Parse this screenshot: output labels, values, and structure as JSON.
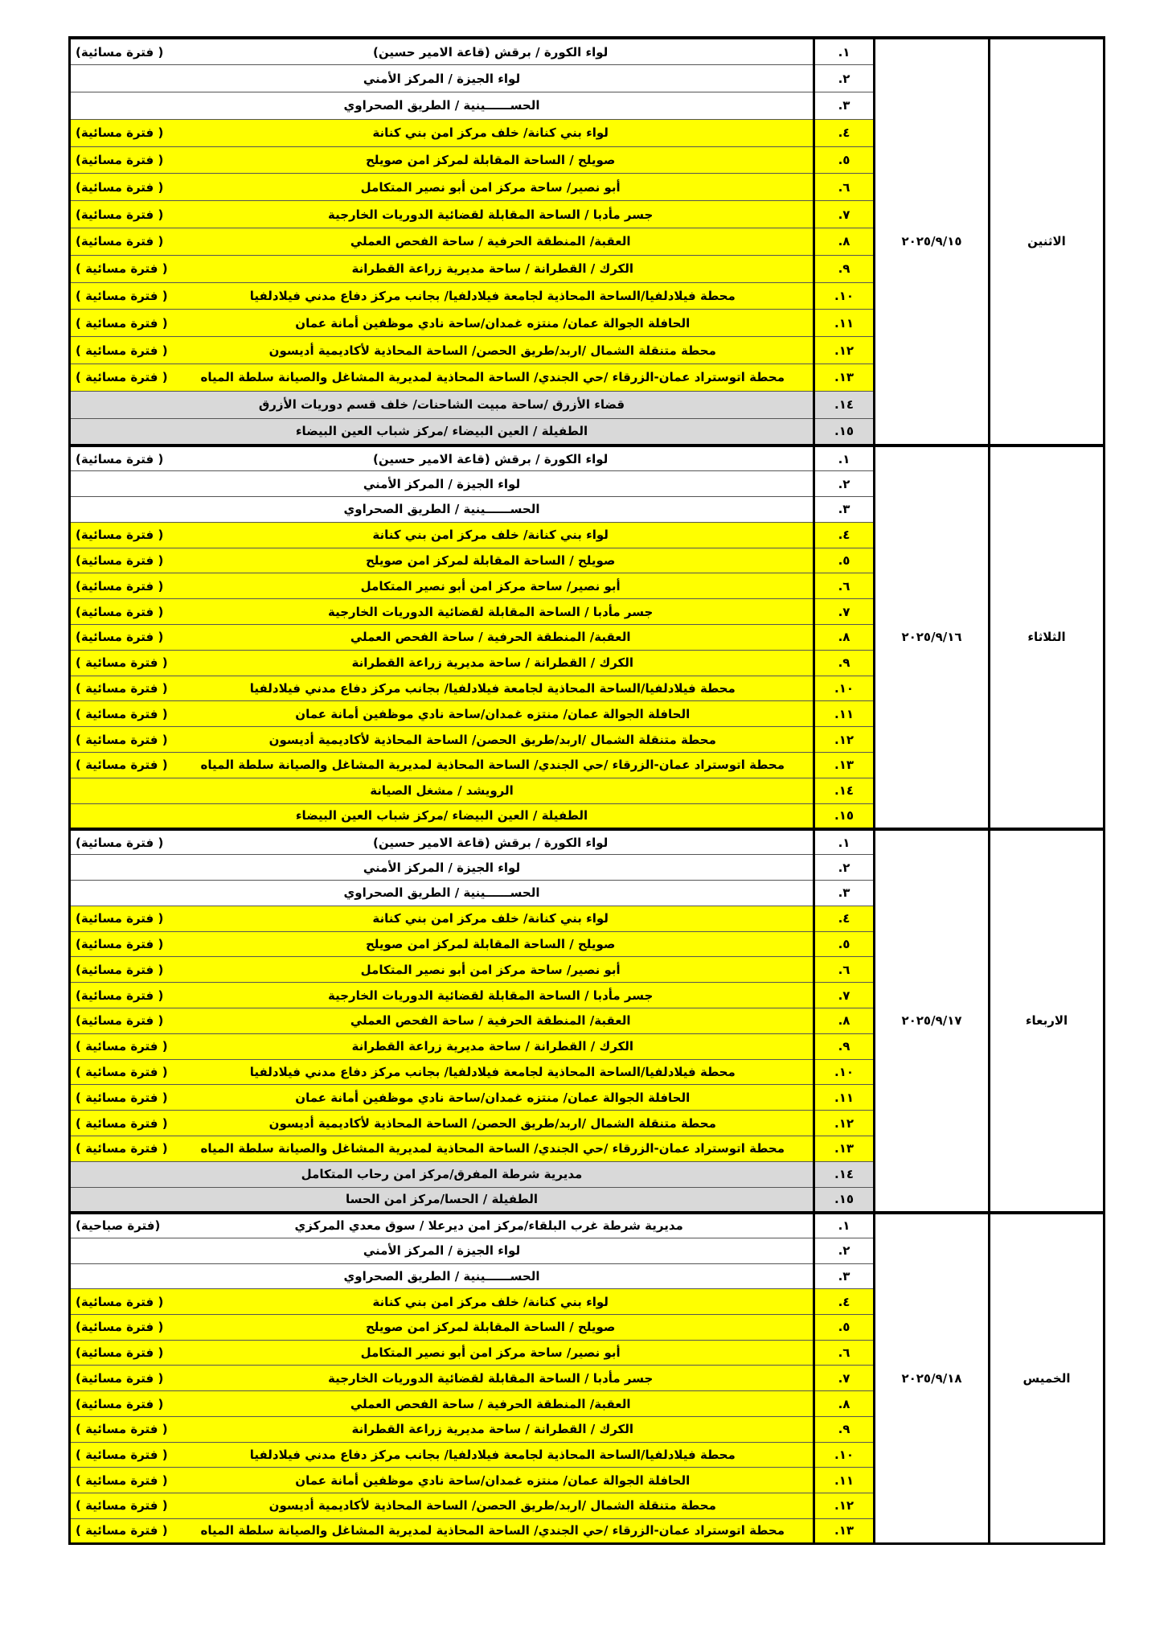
{
  "colors": {
    "white": "#ffffff",
    "yellow": "#ffff00",
    "grey": "#d9d9d9"
  },
  "sections": [
    {
      "day": "الاثنين",
      "date": "٢٠٢٥/٩/١٥",
      "rows": [
        {
          "num": "١.",
          "text": "لواء الكورة / برقش (قاعة الامير حسين)",
          "note": "( فترة مسائية)",
          "bg": "#ffffff"
        },
        {
          "num": "٢.",
          "text": "لواء الجيزة / المركز الأمني",
          "note": "",
          "bg": "#ffffff"
        },
        {
          "num": "٣.",
          "text": "الحســــــينية / الطريق الصحراوي",
          "note": "",
          "bg": "#ffffff"
        },
        {
          "num": "٤.",
          "text": "لواء بني كنانة/ خلف مركز امن بني كنانة",
          "note": "( فترة مسائية)",
          "bg": "#ffff00"
        },
        {
          "num": "٥.",
          "text": "صويلح / الساحة المقابلة لمركز امن صويلح",
          "note": "( فترة مسائية)",
          "bg": "#ffff00"
        },
        {
          "num": "٦.",
          "text": "أبو نصير/ ساحة مركز امن أبو نصير المتكامل",
          "note": "( فترة مسائية)",
          "bg": "#ffff00"
        },
        {
          "num": "٧.",
          "text": "جسر مأدبا / الساحة المقابلة لقضائية الدوريات الخارجية",
          "note": "( فترة مسائية)",
          "bg": "#ffff00"
        },
        {
          "num": "٨.",
          "text": "العقبة/ المنطقة الحرفية / ساحة الفحص العملي",
          "note": "( فترة مسائية)",
          "bg": "#ffff00"
        },
        {
          "num": "٩.",
          "text": "الكرك / القطرانة / ساحة مديرية زراعة القطرانة",
          "note": "( فترة مسائية )",
          "bg": "#ffff00"
        },
        {
          "num": "١٠.",
          "text": "محطة فيلادلفيا/الساحة المحاذية لجامعة فيلادلفيا/ بجانب مركز دفاع مدني فيلادلفيا",
          "note": "( فترة مسائية )",
          "bg": "#ffff00"
        },
        {
          "num": "١١.",
          "text": "الحافلة الجوالة عمان/ منتزه غمدان/ساحة نادي موظفين أمانة عمان",
          "note": "( فترة مسائية )",
          "bg": "#ffff00"
        },
        {
          "num": "١٢.",
          "text": "محطة متنقلة الشمال /اربد/طريق الحصن/ الساحة المحاذية لأكاديمية أديسون",
          "note": "( فترة مسائية )",
          "bg": "#ffff00"
        },
        {
          "num": "١٣.",
          "text": "محطة اتوستراد عمان-الزرقاء /حي الجندي/ الساحة المحاذية لمديرية المشاغل والصيانة سلطة المياه",
          "note": "( فترة مسائية )",
          "bg": "#ffff00"
        },
        {
          "num": "١٤.",
          "text": "قضاء الأزرق /ساحة مبيت الشاحنات/ خلف قسم دوريات الأزرق",
          "note": "",
          "bg": "#d9d9d9"
        },
        {
          "num": "١٥.",
          "text": "الطفيلة / العين البيضاء /مركز شباب العين البيضاء",
          "note": "",
          "bg": "#d9d9d9"
        }
      ]
    },
    {
      "day": "الثلاثاء",
      "date": "٢٠٢٥/٩/١٦",
      "rows": [
        {
          "num": "١.",
          "text": "لواء الكورة / برقش (قاعة الامير حسين)",
          "note": "( فترة مسائية)",
          "bg": "#ffffff"
        },
        {
          "num": "٢.",
          "text": "لواء الجيزة / المركز الأمني",
          "note": "",
          "bg": "#ffffff"
        },
        {
          "num": "٣.",
          "text": "الحســــــينية / الطريق الصحراوي",
          "note": "",
          "bg": "#ffffff"
        },
        {
          "num": "٤.",
          "text": "لواء بني كنانة/ خلف مركز امن بني كنانة",
          "note": "( فترة مسائية)",
          "bg": "#ffff00"
        },
        {
          "num": "٥.",
          "text": "صويلح / الساحة المقابلة لمركز امن صويلح",
          "note": "( فترة مسائية)",
          "bg": "#ffff00"
        },
        {
          "num": "٦.",
          "text": "أبو نصير/ ساحة مركز امن أبو نصير المتكامل",
          "note": "( فترة مسائية)",
          "bg": "#ffff00"
        },
        {
          "num": "٧.",
          "text": "جسر مأدبا / الساحة المقابلة لقضائية الدوريات الخارجية",
          "note": "( فترة مسائية)",
          "bg": "#ffff00"
        },
        {
          "num": "٨.",
          "text": "العقبة/ المنطقة الحرفية / ساحة الفحص العملي",
          "note": "( فترة مسائية)",
          "bg": "#ffff00"
        },
        {
          "num": "٩.",
          "text": "الكرك / القطرانة / ساحة مديرية زراعة القطرانة",
          "note": "( فترة مسائية )",
          "bg": "#ffff00"
        },
        {
          "num": "١٠.",
          "text": "محطة فيلادلفيا/الساحة المحاذية لجامعة فيلادلفيا/ بجانب مركز دفاع مدني فيلادلفيا",
          "note": "( فترة مسائية )",
          "bg": "#ffff00"
        },
        {
          "num": "١١.",
          "text": "الحافلة الجوالة عمان/ منتزه غمدان/ساحة نادي موظفين أمانة عمان",
          "note": "( فترة مسائية )",
          "bg": "#ffff00"
        },
        {
          "num": "١٢.",
          "text": "محطة متنقلة الشمال /اربد/طريق الحصن/ الساحة المحاذية لأكاديمية أديسون",
          "note": "( فترة مسائية )",
          "bg": "#ffff00"
        },
        {
          "num": "١٣.",
          "text": "محطة اتوستراد عمان-الزرقاء /حي الجندي/ الساحة المحاذية لمديرية المشاغل والصيانة سلطة المياه",
          "note": "( فترة مسائية )",
          "bg": "#ffff00"
        },
        {
          "num": "١٤.",
          "text": "الرويشد / مشغل الصيانة",
          "note": "",
          "bg": "#ffff00"
        },
        {
          "num": "١٥.",
          "text": "الطفيلة / العين البيضاء /مركز شباب العين البيضاء",
          "note": "",
          "bg": "#ffff00"
        }
      ]
    },
    {
      "day": "الاربعاء",
      "date": "٢٠٢٥/٩/١٧",
      "rows": [
        {
          "num": "١.",
          "text": "لواء الكورة / برقش (قاعة الامير حسين)",
          "note": "( فترة مسائية)",
          "bg": "#ffffff"
        },
        {
          "num": "٢.",
          "text": "لواء الجيزة / المركز الأمني",
          "note": "",
          "bg": "#ffffff"
        },
        {
          "num": "٣.",
          "text": "الحســــــينية / الطريق الصحراوي",
          "note": "",
          "bg": "#ffffff"
        },
        {
          "num": "٤.",
          "text": "لواء بني كنانة/ خلف مركز امن بني كنانة",
          "note": "( فترة مسائية)",
          "bg": "#ffff00"
        },
        {
          "num": "٥.",
          "text": "صويلح / الساحة المقابلة لمركز امن صويلح",
          "note": "( فترة مسائية)",
          "bg": "#ffff00"
        },
        {
          "num": "٦.",
          "text": "أبو نصير/ ساحة مركز امن أبو نصير المتكامل",
          "note": "( فترة مسائية)",
          "bg": "#ffff00"
        },
        {
          "num": "٧.",
          "text": "جسر مأدبا / الساحة المقابلة لقضائية الدوريات الخارجية",
          "note": "( فترة مسائية)",
          "bg": "#ffff00"
        },
        {
          "num": "٨.",
          "text": "العقبة/ المنطقة الحرفية / ساحة الفحص العملي",
          "note": "( فترة مسائية)",
          "bg": "#ffff00"
        },
        {
          "num": "٩.",
          "text": "الكرك / القطرانة / ساحة مديرية زراعة القطرانة",
          "note": "( فترة مسائية )",
          "bg": "#ffff00"
        },
        {
          "num": "١٠.",
          "text": "محطة فيلادلفيا/الساحة المحاذية لجامعة فيلادلفيا/ بجانب مركز دفاع مدني فيلادلفيا",
          "note": "( فترة مسائية )",
          "bg": "#ffff00"
        },
        {
          "num": "١١.",
          "text": "الحافلة الجوالة عمان/ منتزه غمدان/ساحة نادي موظفين أمانة عمان",
          "note": "( فترة مسائية )",
          "bg": "#ffff00"
        },
        {
          "num": "١٢.",
          "text": "محطة متنقلة الشمال /اربد/طريق الحصن/ الساحة المحاذية لأكاديمية أديسون",
          "note": "( فترة مسائية )",
          "bg": "#ffff00"
        },
        {
          "num": "١٣.",
          "text": "محطة اتوستراد عمان-الزرقاء /حي الجندي/ الساحة المحاذية لمديرية المشاغل والصيانة سلطة المياه",
          "note": "( فترة مسائية )",
          "bg": "#ffff00"
        },
        {
          "num": "١٤.",
          "text": "مديرية شرطة المفرق/مركز امن رحاب المتكامل",
          "note": "",
          "bg": "#d9d9d9"
        },
        {
          "num": "١٥.",
          "text": "الطفيلة / الحسا/مركز امن الحسا",
          "note": "",
          "bg": "#d9d9d9"
        }
      ]
    },
    {
      "day": "الخميس",
      "date": "٢٠٢٥/٩/١٨",
      "rows": [
        {
          "num": "١.",
          "text": "مديرية شرطة غرب البلقاء/مركز امن ديرعلا / سوق معدي المركزي",
          "note": "(فترة صباحية)",
          "bg": "#ffffff"
        },
        {
          "num": "٢.",
          "text": "لواء الجيزة / المركز الأمني",
          "note": "",
          "bg": "#ffffff"
        },
        {
          "num": "٣.",
          "text": "الحســــــينية / الطريق الصحراوي",
          "note": "",
          "bg": "#ffffff"
        },
        {
          "num": "٤.",
          "text": "لواء بني كنانة/ خلف مركز امن بني كنانة",
          "note": "( فترة مسائية)",
          "bg": "#ffff00"
        },
        {
          "num": "٥.",
          "text": "صويلح / الساحة المقابلة لمركز امن صويلح",
          "note": "( فترة مسائية)",
          "bg": "#ffff00"
        },
        {
          "num": "٦.",
          "text": "أبو نصير/ ساحة مركز امن أبو نصير المتكامل",
          "note": "( فترة مسائية)",
          "bg": "#ffff00"
        },
        {
          "num": "٧.",
          "text": "جسر مأدبا / الساحة المقابلة لقضائية الدوريات الخارجية",
          "note": "( فترة مسائية)",
          "bg": "#ffff00"
        },
        {
          "num": "٨.",
          "text": "العقبة/ المنطقة الحرفية / ساحة الفحص العملي",
          "note": "( فترة مسائية)",
          "bg": "#ffff00"
        },
        {
          "num": "٩.",
          "text": "الكرك / القطرانة / ساحة مديرية زراعة القطرانة",
          "note": "( فترة مسائية )",
          "bg": "#ffff00"
        },
        {
          "num": "١٠.",
          "text": "محطة فيلادلفيا/الساحة المحاذية لجامعة فيلادلفيا/ بجانب مركز دفاع مدني فيلادلفيا",
          "note": "( فترة مسائية )",
          "bg": "#ffff00"
        },
        {
          "num": "١١.",
          "text": "الحافلة الجوالة عمان/ منتزه غمدان/ساحة نادي موظفين أمانة عمان",
          "note": "( فترة مسائية )",
          "bg": "#ffff00"
        },
        {
          "num": "١٢.",
          "text": "محطة متنقلة الشمال /اربد/طريق الحصن/ الساحة المحاذية لأكاديمية أديسون",
          "note": "( فترة مسائية )",
          "bg": "#ffff00"
        },
        {
          "num": "١٣.",
          "text": "محطة اتوستراد عمان-الزرقاء /حي الجندي/ الساحة المحاذية لمديرية المشاغل والصيانة سلطة المياه",
          "note": "( فترة مسائية )",
          "bg": "#ffff00"
        }
      ]
    }
  ]
}
